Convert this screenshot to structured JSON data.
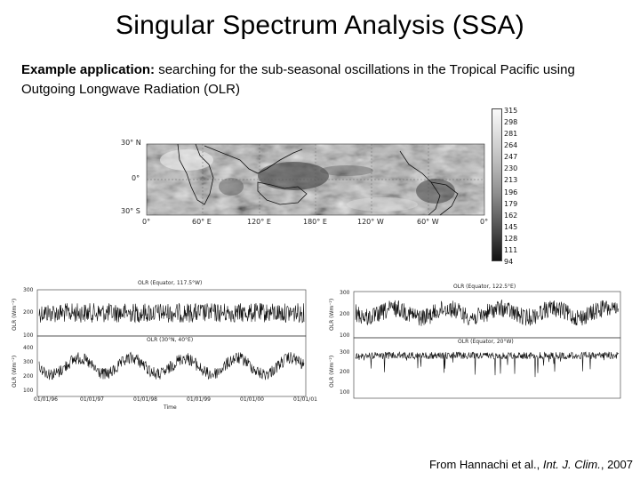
{
  "slide": {
    "title": "Singular Spectrum Analysis (SSA)",
    "subtitle_bold": "Example application:",
    "subtitle_rest": " searching for the sub-seasonal oscillations in the Tropical Pacific using Outgoing Longwave Radiation (OLR)"
  },
  "map": {
    "lat_labels": [
      "30° N",
      "0°",
      "30° S"
    ],
    "lon_labels": [
      "0°",
      "60° E",
      "120° E",
      "180° E",
      "120° W",
      "60° W",
      "0°"
    ],
    "colorbar": [
      "315",
      "298",
      "281",
      "264",
      "247",
      "230",
      "213",
      "196",
      "179",
      "162",
      "145",
      "128",
      "111",
      "94"
    ]
  },
  "left_panels": {
    "top_title": "OLR (Equator, 117.5°W)",
    "bottom_title": "OLR (30°N, 40°E)",
    "top_yticks": [
      "300",
      "200",
      "100"
    ],
    "bottom_yticks": [
      "400",
      "300",
      "200",
      "100"
    ],
    "ylabel": "OLR (Wm⁻²)",
    "xticks": [
      "01/01/96",
      "01/01/97",
      "01/01/98",
      "01/01/99",
      "01/01/00",
      "01/01/01"
    ],
    "xlabel": "Time"
  },
  "right_panels": {
    "top_title": "OLR (Equator, 122.5°E)",
    "bottom_title": "OLR (Equator, 20°W)",
    "top_yticks": [
      "300",
      "200",
      "100"
    ],
    "bottom_yticks": [
      "300",
      "200",
      "100"
    ],
    "ylabel": "OLR (Wm⁻²)"
  },
  "credit": {
    "prefix": "From Hannachi et al., ",
    "journal": "Int. J. Clim.",
    "suffix": ", 2007"
  }
}
